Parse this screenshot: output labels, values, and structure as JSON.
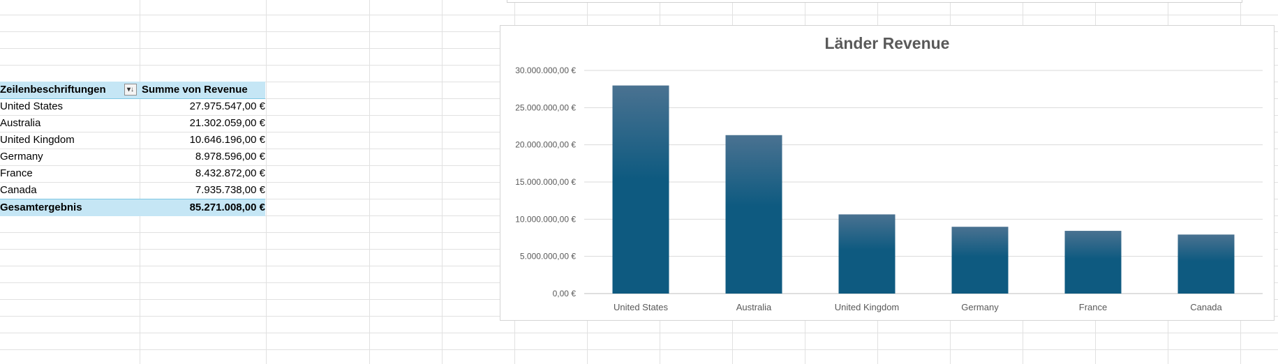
{
  "pivot": {
    "header": {
      "label_col": "Zeilenbeschriftungen",
      "value_col": "Summe von Revenue",
      "filter_icon": "sort-filter-icon"
    },
    "rows": [
      {
        "label": "United States",
        "value": "27.975.547,00 €"
      },
      {
        "label": "Australia",
        "value": "21.302.059,00 €"
      },
      {
        "label": "United Kingdom",
        "value": "10.646.196,00 €"
      },
      {
        "label": "Germany",
        "value": "8.978.596,00 €"
      },
      {
        "label": "France",
        "value": "8.432.872,00 €"
      },
      {
        "label": "Canada",
        "value": "7.935.738,00 €"
      }
    ],
    "total": {
      "label": "Gesamtergebnis",
      "value": "85.271.008,00 €"
    }
  },
  "chart_data": {
    "type": "bar",
    "title": "Länder Revenue",
    "categories": [
      "United States",
      "Australia",
      "United Kingdom",
      "Germany",
      "France",
      "Canada"
    ],
    "values": [
      27975547,
      21302059,
      10646196,
      8978596,
      8432872,
      7935738
    ],
    "ylim": [
      0,
      30000000
    ],
    "yticks": [
      0,
      5000000,
      10000000,
      15000000,
      20000000,
      25000000,
      30000000
    ],
    "ytick_labels": [
      "0,00 €",
      "5.000.000,00 €",
      "10.000.000,00 €",
      "15.000.000,00 €",
      "20.000.000,00 €",
      "25.000.000,00 €",
      "30.000.000,00 €"
    ],
    "xlabel": "",
    "ylabel": "",
    "grid": true,
    "legend": false,
    "colors": {
      "bar_top": "#4a7291",
      "bar_bottom": "#0e5a80",
      "grid": "#d9d9d9",
      "text": "#595959"
    }
  }
}
